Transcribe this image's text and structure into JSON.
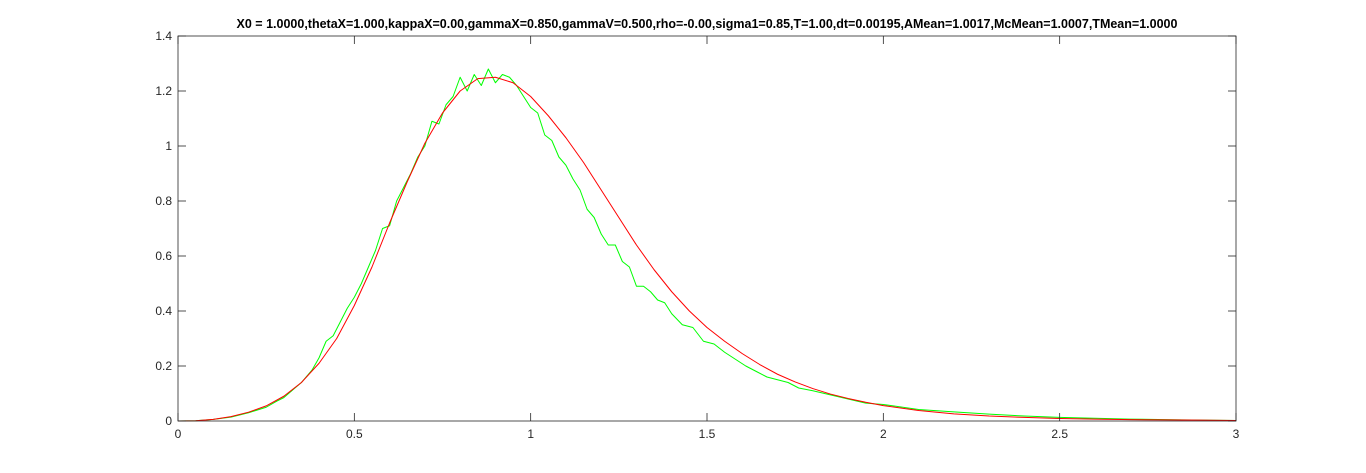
{
  "chart_data": {
    "type": "line",
    "title": "X0 = 1.0000,thetaX=1.000,kappaX=0.00,gammaX=0.850,gammaV=0.500,rho=-0.00,sigma1=0.85,T=1.00,dt=0.00195,AMean=1.0017,McMean=1.0007,TMean=1.0000",
    "xlabel": "",
    "ylabel": "",
    "xlim": [
      0,
      3
    ],
    "ylim": [
      0,
      1.4
    ],
    "x_ticks": [
      0,
      0.5,
      1,
      1.5,
      2,
      2.5,
      3
    ],
    "x_tick_labels": [
      "0",
      "0.5",
      "1",
      "1.5",
      "2",
      "2.5",
      "3"
    ],
    "y_ticks": [
      0,
      0.2,
      0.4,
      0.6,
      0.8,
      1,
      1.2,
      1.4
    ],
    "y_tick_labels": [
      "0",
      "0.2",
      "0.4",
      "0.6",
      "0.8",
      "1",
      "1.2",
      "1.4"
    ],
    "grid": false,
    "legend": "none",
    "series": [
      {
        "color": "#00ff00",
        "x": [
          0.0,
          0.05,
          0.1,
          0.15,
          0.2,
          0.25,
          0.28,
          0.3,
          0.33,
          0.35,
          0.38,
          0.4,
          0.42,
          0.44,
          0.46,
          0.48,
          0.5,
          0.52,
          0.54,
          0.56,
          0.58,
          0.6,
          0.62,
          0.64,
          0.66,
          0.68,
          0.7,
          0.72,
          0.74,
          0.76,
          0.78,
          0.8,
          0.82,
          0.84,
          0.86,
          0.88,
          0.9,
          0.92,
          0.94,
          0.96,
          0.98,
          1.0,
          1.02,
          1.04,
          1.06,
          1.08,
          1.1,
          1.12,
          1.14,
          1.16,
          1.18,
          1.2,
          1.22,
          1.24,
          1.26,
          1.28,
          1.3,
          1.32,
          1.34,
          1.36,
          1.38,
          1.4,
          1.43,
          1.46,
          1.49,
          1.52,
          1.55,
          1.58,
          1.61,
          1.64,
          1.67,
          1.7,
          1.73,
          1.76,
          1.8,
          1.85,
          1.9,
          1.95,
          2.0,
          2.1,
          2.2,
          2.3,
          2.4,
          2.5,
          2.6,
          2.7,
          2.8,
          2.9,
          3.0
        ],
        "y": [
          0.0,
          0.001,
          0.006,
          0.014,
          0.03,
          0.05,
          0.072,
          0.085,
          0.118,
          0.14,
          0.185,
          0.23,
          0.29,
          0.31,
          0.36,
          0.41,
          0.45,
          0.5,
          0.56,
          0.62,
          0.7,
          0.71,
          0.8,
          0.85,
          0.9,
          0.96,
          1.0,
          1.09,
          1.08,
          1.15,
          1.18,
          1.25,
          1.2,
          1.26,
          1.22,
          1.28,
          1.23,
          1.26,
          1.25,
          1.22,
          1.18,
          1.14,
          1.12,
          1.04,
          1.02,
          0.96,
          0.93,
          0.88,
          0.84,
          0.77,
          0.74,
          0.68,
          0.64,
          0.64,
          0.58,
          0.56,
          0.49,
          0.49,
          0.47,
          0.44,
          0.43,
          0.39,
          0.35,
          0.34,
          0.29,
          0.28,
          0.25,
          0.225,
          0.2,
          0.18,
          0.16,
          0.15,
          0.14,
          0.12,
          0.11,
          0.095,
          0.08,
          0.065,
          0.06,
          0.042,
          0.033,
          0.025,
          0.018,
          0.013,
          0.01,
          0.007,
          0.005,
          0.003,
          0.002
        ]
      },
      {
        "color": "#ff0000",
        "x": [
          0.0,
          0.05,
          0.1,
          0.15,
          0.2,
          0.25,
          0.3,
          0.35,
          0.4,
          0.45,
          0.5,
          0.55,
          0.6,
          0.65,
          0.7,
          0.75,
          0.8,
          0.85,
          0.9,
          0.95,
          1.0,
          1.05,
          1.1,
          1.15,
          1.2,
          1.25,
          1.3,
          1.35,
          1.4,
          1.45,
          1.5,
          1.55,
          1.6,
          1.65,
          1.7,
          1.75,
          1.8,
          1.85,
          1.9,
          1.95,
          2.0,
          2.1,
          2.2,
          2.3,
          2.4,
          2.5,
          2.6,
          2.7,
          2.8,
          2.9,
          3.0
        ],
        "y": [
          0.0,
          0.001,
          0.006,
          0.016,
          0.032,
          0.055,
          0.09,
          0.14,
          0.21,
          0.3,
          0.42,
          0.56,
          0.72,
          0.87,
          1.01,
          1.12,
          1.2,
          1.245,
          1.25,
          1.23,
          1.18,
          1.11,
          1.03,
          0.94,
          0.84,
          0.74,
          0.64,
          0.55,
          0.47,
          0.4,
          0.34,
          0.29,
          0.245,
          0.205,
          0.17,
          0.142,
          0.118,
          0.098,
          0.082,
          0.068,
          0.056,
          0.038,
          0.026,
          0.018,
          0.013,
          0.009,
          0.007,
          0.005,
          0.004,
          0.003,
          0.002
        ]
      }
    ]
  }
}
